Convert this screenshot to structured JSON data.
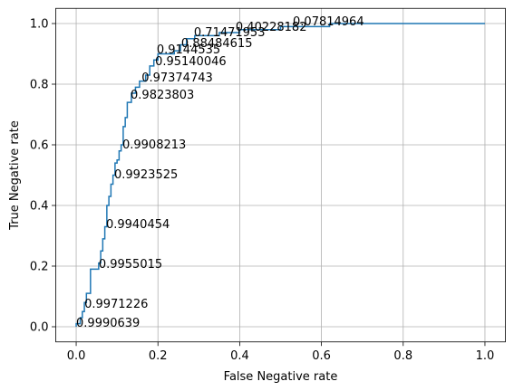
{
  "chart_data": {
    "type": "line",
    "xlabel": "False Negative rate",
    "ylabel": "True Negative rate",
    "xlim": [
      -0.05,
      1.05
    ],
    "ylim": [
      -0.05,
      1.05
    ],
    "xticks": [
      {
        "value": 0,
        "label": "0.0"
      },
      {
        "value": 0.2,
        "label": "0.2"
      },
      {
        "value": 0.4,
        "label": "0.4"
      },
      {
        "value": 0.6,
        "label": "0.6"
      },
      {
        "value": 0.8,
        "label": "0.8"
      },
      {
        "value": 1,
        "label": "1.0"
      }
    ],
    "yticks": [
      {
        "value": 0,
        "label": "0.0"
      },
      {
        "value": 0.2,
        "label": "0.2"
      },
      {
        "value": 0.4,
        "label": "0.4"
      },
      {
        "value": 0.6,
        "label": "0.6"
      },
      {
        "value": 0.8,
        "label": "0.8"
      },
      {
        "value": 1,
        "label": "1.0"
      }
    ],
    "grid": true,
    "series": [
      {
        "color": "#1f77b4",
        "x": [
          0,
          0,
          0.01,
          0.01,
          0.015,
          0.015,
          0.02,
          0.02,
          0.025,
          0.025,
          0.035,
          0.035,
          0.055,
          0.055,
          0.06,
          0.06,
          0.065,
          0.065,
          0.07,
          0.07,
          0.075,
          0.075,
          0.08,
          0.08,
          0.085,
          0.085,
          0.09,
          0.09,
          0.095,
          0.095,
          0.1,
          0.1,
          0.105,
          0.105,
          0.11,
          0.11,
          0.115,
          0.115,
          0.12,
          0.12,
          0.125,
          0.125,
          0.135,
          0.135,
          0.145,
          0.145,
          0.155,
          0.155,
          0.17,
          0.17,
          0.18,
          0.18,
          0.19,
          0.19,
          0.2,
          0.2,
          0.24,
          0.24,
          0.255,
          0.255,
          0.27,
          0.27,
          0.29,
          0.29,
          0.35,
          0.35,
          0.4,
          0.4,
          0.5,
          0.5,
          0.62,
          0.62,
          1.0
        ],
        "values": [
          0,
          0.01,
          0.01,
          0.03,
          0.03,
          0.05,
          0.05,
          0.08,
          0.08,
          0.11,
          0.11,
          0.19,
          0.19,
          0.21,
          0.21,
          0.25,
          0.25,
          0.29,
          0.29,
          0.33,
          0.33,
          0.4,
          0.4,
          0.43,
          0.43,
          0.47,
          0.47,
          0.5,
          0.5,
          0.54,
          0.54,
          0.55,
          0.55,
          0.58,
          0.58,
          0.6,
          0.6,
          0.66,
          0.66,
          0.69,
          0.69,
          0.74,
          0.74,
          0.77,
          0.77,
          0.79,
          0.79,
          0.81,
          0.81,
          0.83,
          0.83,
          0.86,
          0.86,
          0.88,
          0.88,
          0.9,
          0.9,
          0.91,
          0.91,
          0.93,
          0.93,
          0.95,
          0.95,
          0.96,
          0.96,
          0.97,
          0.97,
          0.98,
          0.98,
          0.99,
          0.99,
          1.0,
          1.0
        ]
      }
    ],
    "annotations": [
      {
        "text": "0.9990639",
        "x": 0,
        "y": 0
      },
      {
        "text": "0.9971226",
        "x": 0.02,
        "y": 0.063
      },
      {
        "text": "0.9955015",
        "x": 0.055,
        "y": 0.194
      },
      {
        "text": "0.9940454",
        "x": 0.073,
        "y": 0.325
      },
      {
        "text": "0.9923525",
        "x": 0.093,
        "y": 0.49
      },
      {
        "text": "0.9908213",
        "x": 0.113,
        "y": 0.588
      },
      {
        "text": "0.9823803",
        "x": 0.133,
        "y": 0.752
      },
      {
        "text": "0.97374743",
        "x": 0.16,
        "y": 0.809
      },
      {
        "text": "0.95140046",
        "x": 0.193,
        "y": 0.863
      },
      {
        "text": "0.9144535",
        "x": 0.197,
        "y": 0.901
      },
      {
        "text": "0.88484615",
        "x": 0.257,
        "y": 0.922
      },
      {
        "text": "0.71471953",
        "x": 0.288,
        "y": 0.958
      },
      {
        "text": "0.40228182",
        "x": 0.39,
        "y": 0.976
      },
      {
        "text": "0.07814964",
        "x": 0.53,
        "y": 0.994
      }
    ]
  }
}
